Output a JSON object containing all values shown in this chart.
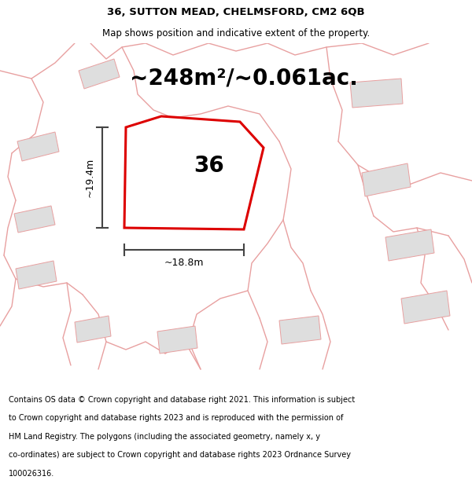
{
  "title": "36, SUTTON MEAD, CHELMSFORD, CM2 6QB",
  "subtitle": "Map shows position and indicative extent of the property.",
  "area_text": "~248m²/~0.061ac.",
  "width_label": "~18.8m",
  "height_label": "~19.4m",
  "property_number": "36",
  "footer_lines": [
    "Contains OS data © Crown copyright and database right 2021. This information is subject",
    "to Crown copyright and database rights 2023 and is reproduced with the permission of",
    "HM Land Registry. The polygons (including the associated geometry, namely x, y",
    "co-ordinates) are subject to Crown copyright and database rights 2023 Ordnance Survey",
    "100026316."
  ],
  "background_color": "#ffffff",
  "map_bg_color": "#f0f0f0",
  "property_fill": "#ffffff",
  "property_edge_color": "#dd0000",
  "nearby_fill": "#dedede",
  "nearby_edge_color": "#e8a0a0",
  "road_color": "#e8a0a0",
  "title_fontsize": 9.5,
  "subtitle_fontsize": 8.5,
  "area_fontsize": 20,
  "label_fontsize": 9,
  "number_fontsize": 20,
  "footer_fontsize": 7.0,
  "road_lw": 1.0,
  "building_lw": 0.7,
  "property_lw": 2.2
}
